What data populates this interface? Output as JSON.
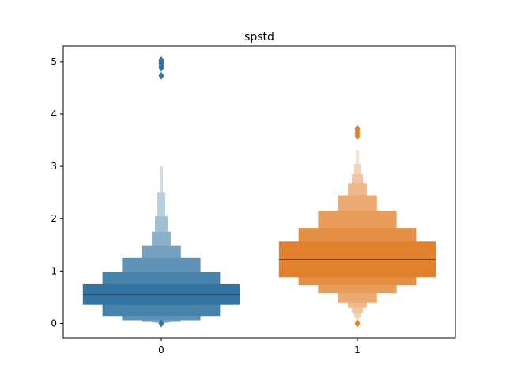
{
  "chart_data": {
    "type": "boxen",
    "title": "spstd",
    "xlabel": "",
    "ylabel": "",
    "categories": [
      "0",
      "1"
    ],
    "ylim": [
      -0.28,
      5.3
    ],
    "yticks": [
      0,
      1,
      2,
      3,
      4,
      5
    ],
    "colors": [
      "#3274a1",
      "#e1812c"
    ],
    "series": [
      {
        "category": "0",
        "median": 0.55,
        "boxes": [
          {
            "low": 0.36,
            "high": 0.75,
            "width": 1.0
          },
          {
            "low": 0.14,
            "high": 0.98,
            "width": 0.75
          },
          {
            "low": 0.06,
            "high": 1.25,
            "width": 0.5
          },
          {
            "low": 0.03,
            "high": 1.48,
            "width": 0.25
          },
          {
            "low": 0.02,
            "high": 1.75,
            "width": 0.12
          },
          {
            "low": 0.01,
            "high": 2.05,
            "width": 0.08
          },
          {
            "low": 0.005,
            "high": 2.5,
            "width": 0.05
          },
          {
            "low": 0.0,
            "high": 3.0,
            "width": 0.02
          }
        ],
        "outliers": [
          0.0,
          4.73,
          4.88,
          4.92,
          4.96,
          5.0,
          5.03
        ]
      },
      {
        "category": "1",
        "median": 1.22,
        "boxes": [
          {
            "low": 0.88,
            "high": 1.56,
            "width": 1.0
          },
          {
            "low": 0.73,
            "high": 1.82,
            "width": 0.75
          },
          {
            "low": 0.58,
            "high": 2.15,
            "width": 0.5
          },
          {
            "low": 0.39,
            "high": 2.45,
            "width": 0.25
          },
          {
            "low": 0.3,
            "high": 2.68,
            "width": 0.12
          },
          {
            "low": 0.2,
            "high": 2.85,
            "width": 0.07
          },
          {
            "low": 0.1,
            "high": 3.05,
            "width": 0.04
          },
          {
            "low": 0.02,
            "high": 3.3,
            "width": 0.02
          }
        ],
        "outliers": [
          0.0,
          3.58,
          3.63,
          3.68,
          3.72
        ]
      }
    ]
  }
}
